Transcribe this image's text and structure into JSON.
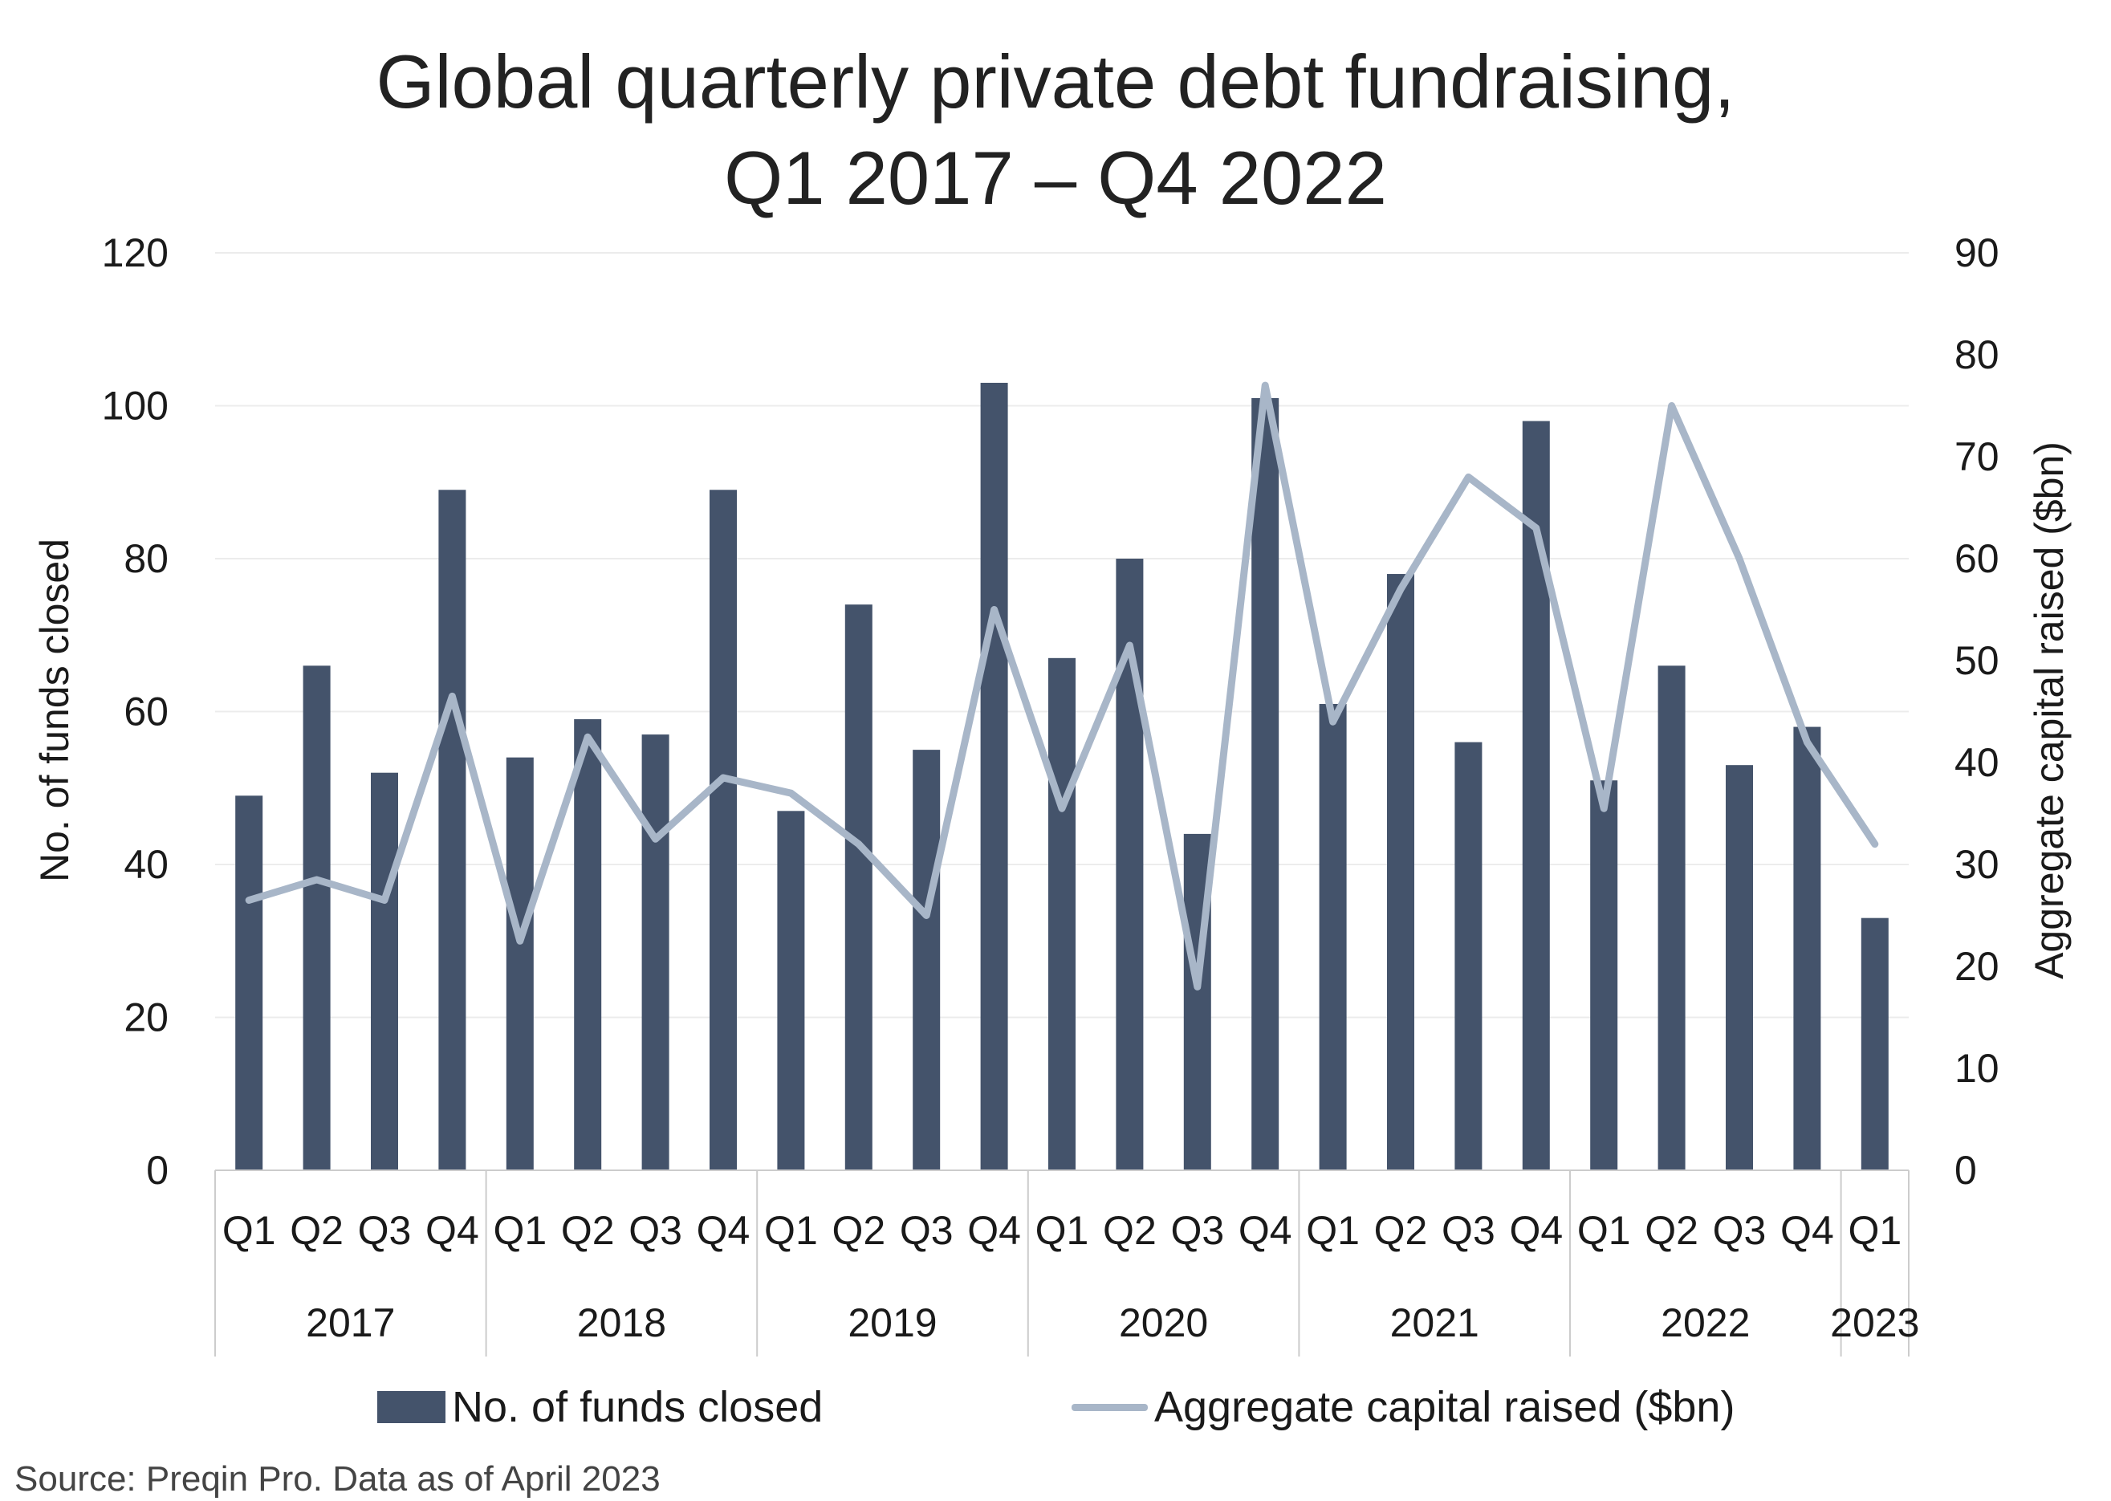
{
  "chart_data": {
    "type": "bar",
    "title": "Global quarterly private debt fundraising,",
    "subtitle": "Q1 2017 – Q4 2022",
    "categories": [
      "Q1",
      "Q2",
      "Q3",
      "Q4",
      "Q1",
      "Q2",
      "Q3",
      "Q4",
      "Q1",
      "Q2",
      "Q3",
      "Q4",
      "Q1",
      "Q2",
      "Q3",
      "Q4",
      "Q1",
      "Q2",
      "Q3",
      "Q4",
      "Q1",
      "Q2",
      "Q3",
      "Q4",
      "Q1"
    ],
    "years": [
      {
        "label": "2017",
        "start": 0,
        "count": 4
      },
      {
        "label": "2018",
        "start": 4,
        "count": 4
      },
      {
        "label": "2019",
        "start": 8,
        "count": 4
      },
      {
        "label": "2020",
        "start": 12,
        "count": 4
      },
      {
        "label": "2021",
        "start": 16,
        "count": 4
      },
      {
        "label": "2022",
        "start": 20,
        "count": 4
      },
      {
        "label": "2023",
        "start": 24,
        "count": 1
      }
    ],
    "series": [
      {
        "name": "No. of funds closed",
        "type": "bar",
        "axis": "left",
        "color": "#44536b",
        "values": [
          49,
          66,
          52,
          89,
          54,
          59,
          57,
          89,
          47,
          74,
          55,
          103,
          67,
          80,
          44,
          101,
          61,
          78,
          56,
          98,
          51,
          66,
          53,
          58,
          33
        ]
      },
      {
        "name": "Aggregate capital raised ($bn)",
        "type": "line",
        "axis": "right",
        "color": "#a8b6c8",
        "values": [
          26.5,
          28.5,
          26.5,
          46.5,
          22.5,
          42.5,
          32.5,
          38.5,
          37,
          32,
          25,
          55,
          35.5,
          51.5,
          18,
          77,
          44,
          57,
          68,
          63,
          35.5,
          75,
          60,
          42,
          32
        ]
      }
    ],
    "y_left": {
      "label": "No. of funds closed",
      "min": 0,
      "max": 120,
      "ticks": [
        "0",
        "20",
        "40",
        "60",
        "80",
        "100",
        "120"
      ]
    },
    "y_right": {
      "label": "Aggregate capital raised ($bn)",
      "min": 0,
      "max": 90,
      "ticks": [
        "0",
        "10",
        "20",
        "30",
        "40",
        "50",
        "60",
        "70",
        "80",
        "90"
      ]
    },
    "grid": true,
    "legend_position": "bottom"
  },
  "footer": {
    "source": "Source: Preqin Pro. Data as of April 2023"
  }
}
